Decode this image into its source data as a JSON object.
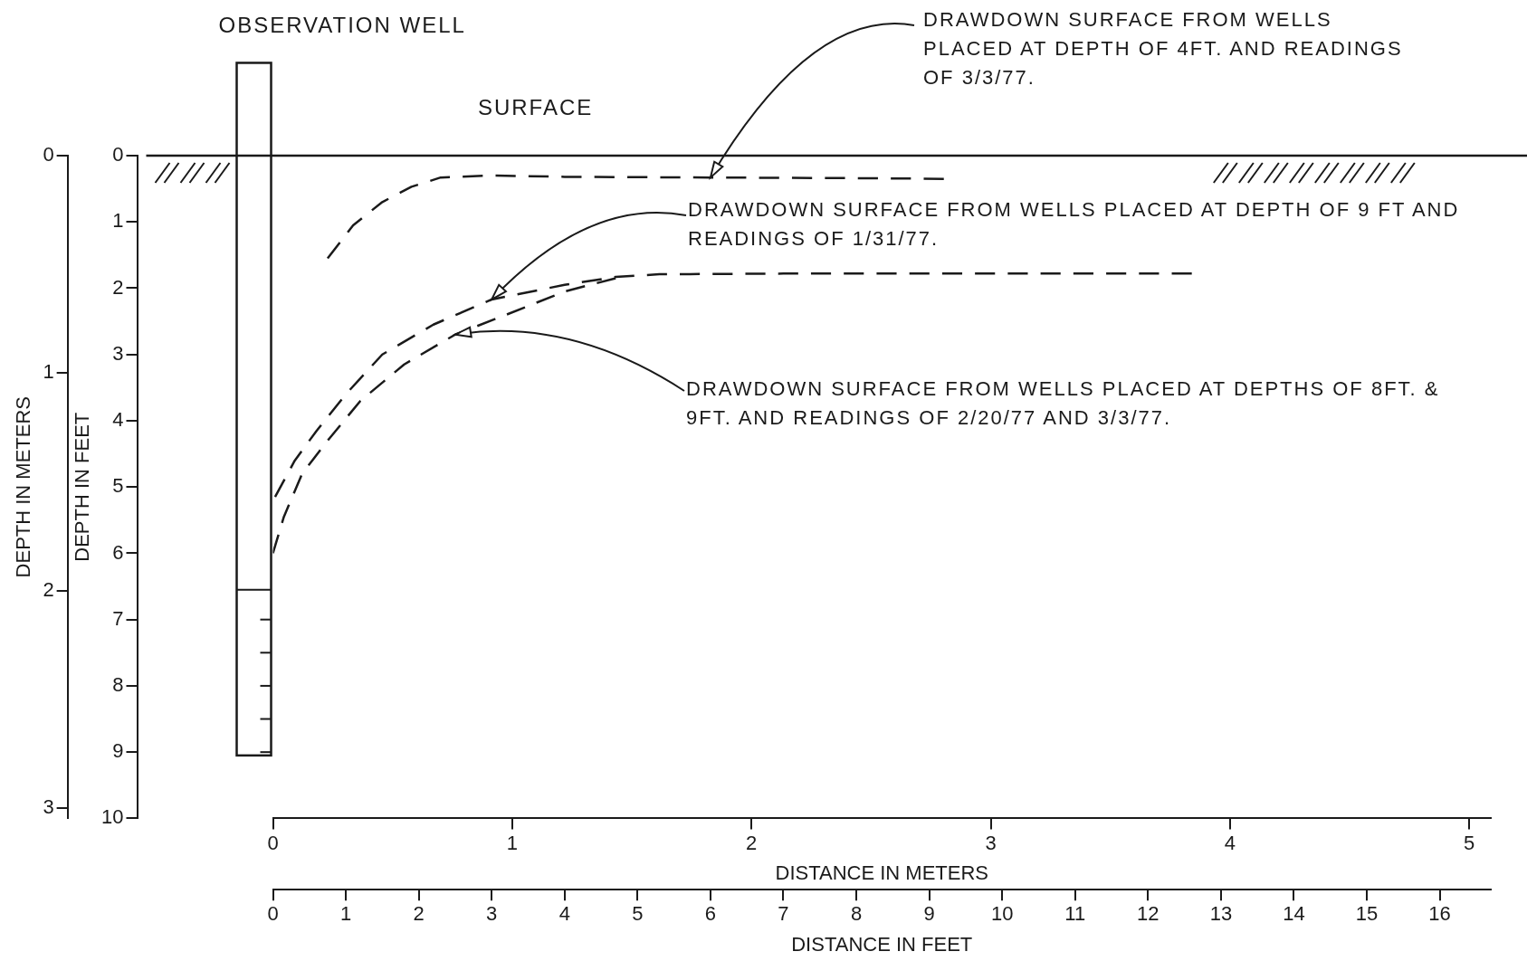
{
  "chart_data": {
    "type": "line",
    "xlabel": "DISTANCE IN FEET",
    "x2label": "DISTANCE IN METERS",
    "ylabel": "DEPTH IN FEET",
    "y2label": "DEPTH IN METERS",
    "xlim": [
      0,
      16.7
    ],
    "xticks": [
      0,
      1,
      2,
      3,
      4,
      5,
      6,
      7,
      8,
      9,
      10,
      11,
      12,
      13,
      14,
      15,
      16
    ],
    "x2lim": [
      0,
      5.09
    ],
    "x2ticks": [
      0,
      1,
      2,
      3,
      4,
      5
    ],
    "ylim": [
      10,
      0
    ],
    "yticks": [
      0,
      1,
      2,
      3,
      4,
      5,
      6,
      7,
      8,
      9,
      10
    ],
    "y2lim": [
      3.048,
      0
    ],
    "y2ticks": [
      0,
      1,
      2,
      3
    ],
    "grid": false,
    "legend": false,
    "marker": "none",
    "line_style": "dashed",
    "annotations": [
      "OBSERVATION WELL",
      {
        "text": "DRAWDOWN SURFACE FROM WELLS PLACED AT DEPTH OF 4FT. AND READINGS OF 3/3/77.",
        "x": 6,
        "y": 0.33
      },
      {
        "text": "DRAWDOWN SURFACE FROM WELLS PLACED AT DEPTH OF 9 FT AND READINGS OF 1/31/77.",
        "x": 3,
        "y": 2.17
      },
      {
        "text": "DRAWDOWN SURFACE FROM WELLS PLACED AT DEPTHS OF 8FT. & 9FT. AND READINGS OF 2/20/77 AND 3/3/77.",
        "x": 2.5,
        "y": 2.7
      }
    ],
    "ref_lines": [
      {
        "axis": "y",
        "value": 0,
        "label": "SURFACE",
        "color": "#1a1a1a"
      }
    ],
    "series": [
      {
        "color": "#1a1a1a",
        "x": [
          0.75,
          1.1,
          1.5,
          1.9,
          2.3,
          3,
          4,
          6,
          8,
          9.2
        ],
        "values": [
          1.55,
          1.05,
          0.7,
          0.47,
          0.33,
          0.3,
          0.32,
          0.33,
          0.34,
          0.35
        ]
      },
      {
        "color": "#1a1a1a",
        "x": [
          0.03,
          0.3,
          0.6,
          1,
          1.5,
          2.2,
          3,
          4,
          4.7,
          5.3,
          7,
          10,
          12.6
        ],
        "values": [
          5.15,
          4.6,
          4.15,
          3.6,
          3.0,
          2.55,
          2.17,
          1.95,
          1.83,
          1.79,
          1.78,
          1.78,
          1.78
        ]
      },
      {
        "color": "#1a1a1a",
        "x": [
          0,
          0.15,
          0.4,
          0.75,
          1.2,
          1.8,
          2.5,
          3.2,
          4,
          4.7
        ],
        "values": [
          6.0,
          5.45,
          4.8,
          4.3,
          3.7,
          3.15,
          2.7,
          2.4,
          2.05,
          1.85
        ]
      }
    ]
  }
}
